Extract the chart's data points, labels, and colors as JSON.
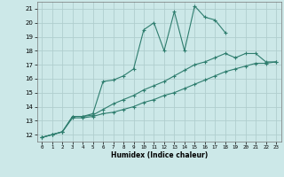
{
  "xlabel": "Humidex (Indice chaleur)",
  "bg_color": "#cce8e8",
  "grid_color": "#b0cece",
  "line_color": "#2e7d6e",
  "xlim": [
    -0.5,
    23.5
  ],
  "ylim": [
    11.5,
    21.5
  ],
  "xticks": [
    0,
    1,
    2,
    3,
    4,
    5,
    6,
    7,
    8,
    9,
    10,
    11,
    12,
    13,
    14,
    15,
    16,
    17,
    18,
    19,
    20,
    21,
    22,
    23
  ],
  "yticks": [
    12,
    13,
    14,
    15,
    16,
    17,
    18,
    19,
    20,
    21
  ],
  "series1_x": [
    0,
    1,
    2,
    3,
    4,
    5,
    6,
    7,
    8,
    9,
    10,
    11,
    12,
    13,
    14,
    15,
    16,
    17,
    18
  ],
  "series1_y": [
    11.8,
    12.0,
    12.2,
    13.3,
    13.3,
    13.5,
    15.8,
    15.9,
    16.2,
    16.7,
    19.5,
    20.0,
    18.0,
    20.8,
    18.0,
    21.2,
    20.4,
    20.2,
    19.3
  ],
  "series2_x": [
    0,
    1,
    2,
    3,
    4,
    5,
    6,
    7,
    8,
    9,
    10,
    11,
    12,
    13,
    14,
    15,
    16,
    17,
    18,
    19,
    20,
    21,
    22,
    23
  ],
  "series2_y": [
    11.8,
    12.0,
    12.2,
    13.3,
    13.3,
    13.4,
    13.8,
    14.2,
    14.5,
    14.8,
    15.2,
    15.5,
    15.8,
    16.2,
    16.6,
    17.0,
    17.2,
    17.5,
    17.8,
    17.5,
    17.8,
    17.8,
    17.2,
    17.2
  ],
  "series3_x": [
    0,
    1,
    2,
    3,
    4,
    5,
    6,
    7,
    8,
    9,
    10,
    11,
    12,
    13,
    14,
    15,
    16,
    17,
    18,
    19,
    20,
    21,
    22,
    23
  ],
  "series3_y": [
    11.8,
    12.0,
    12.2,
    13.2,
    13.2,
    13.3,
    13.5,
    13.6,
    13.8,
    14.0,
    14.3,
    14.5,
    14.8,
    15.0,
    15.3,
    15.6,
    15.9,
    16.2,
    16.5,
    16.7,
    16.9,
    17.1,
    17.1,
    17.2
  ]
}
